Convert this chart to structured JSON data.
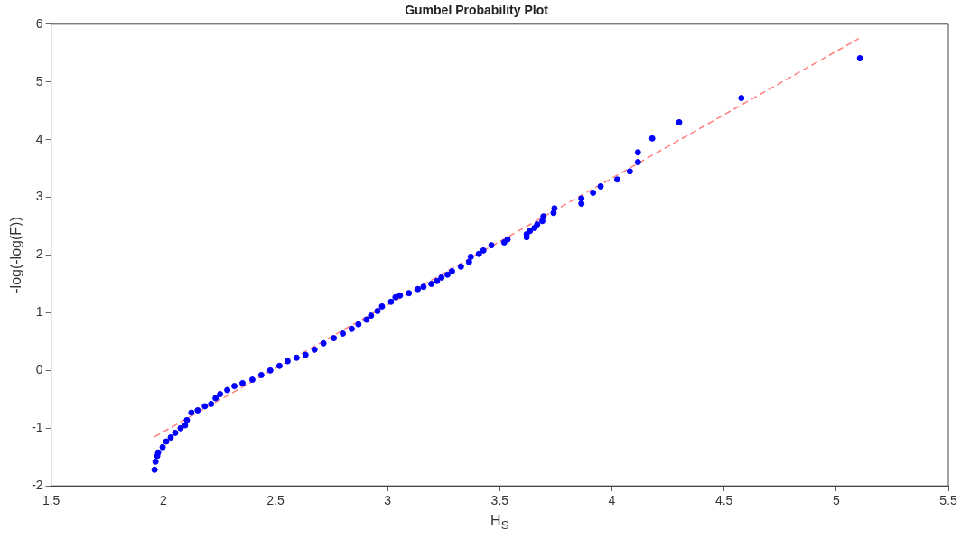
{
  "chart_data": {
    "type": "scatter",
    "title": "Gumbel Probability Plot",
    "xlabel": "H$_{S}$",
    "ylabel": "-log(-log(F))",
    "xlim": [
      1.5,
      5.5
    ],
    "xticks": [
      1.5,
      2,
      2.5,
      3,
      3.5,
      4,
      4.5,
      5,
      5.5
    ],
    "ylim": [
      -2,
      6
    ],
    "yticks": [
      -2,
      -1,
      0,
      1,
      2,
      3,
      4,
      5,
      6
    ],
    "grid": false,
    "legend": false,
    "series": [
      {
        "color": "#0000ff",
        "marker": "circle",
        "x": [
          1.961,
          1.965,
          1.973,
          1.977,
          1.997,
          2.013,
          2.033,
          2.053,
          2.077,
          2.097,
          2.105,
          2.125,
          2.153,
          2.185,
          2.213,
          2.233,
          2.253,
          2.285,
          2.317,
          2.353,
          2.397,
          2.437,
          2.477,
          2.518,
          2.554,
          2.594,
          2.634,
          2.674,
          2.714,
          2.76,
          2.8,
          2.84,
          2.87,
          2.906,
          2.926,
          2.955,
          2.975,
          3.015,
          3.035,
          3.055,
          3.095,
          3.135,
          3.16,
          3.195,
          3.22,
          3.24,
          3.267,
          3.287,
          3.327,
          3.363,
          3.371,
          3.407,
          3.427,
          3.463,
          3.52,
          3.535,
          3.62,
          3.62,
          3.635,
          3.655,
          3.667,
          3.69,
          3.695,
          3.74,
          3.744,
          3.864,
          3.864,
          3.916,
          3.95,
          4.024,
          4.08,
          4.116,
          4.116,
          4.18,
          4.3,
          4.577,
          5.106
        ],
        "values": [
          -1.72,
          -1.58,
          -1.48,
          -1.42,
          -1.33,
          -1.23,
          -1.16,
          -1.08,
          -1.0,
          -0.95,
          -0.86,
          -0.73,
          -0.69,
          -0.62,
          -0.58,
          -0.48,
          -0.41,
          -0.34,
          -0.27,
          -0.22,
          -0.16,
          -0.08,
          0.0,
          0.08,
          0.16,
          0.22,
          0.27,
          0.36,
          0.47,
          0.56,
          0.64,
          0.72,
          0.8,
          0.88,
          0.95,
          1.03,
          1.11,
          1.19,
          1.27,
          1.3,
          1.34,
          1.41,
          1.45,
          1.5,
          1.55,
          1.61,
          1.66,
          1.72,
          1.8,
          1.88,
          1.97,
          2.02,
          2.08,
          2.17,
          2.22,
          2.27,
          2.31,
          2.36,
          2.42,
          2.47,
          2.53,
          2.59,
          2.67,
          2.73,
          2.81,
          2.89,
          2.98,
          3.08,
          3.19,
          3.31,
          3.45,
          3.61,
          3.78,
          4.02,
          4.3,
          4.72,
          5.41
        ]
      },
      {
        "type": "line",
        "color": "#ff7f7f",
        "marker": "none",
        "line_style": "dashed",
        "x": [
          1.96,
          5.1
        ],
        "values": [
          -1.15,
          5.75
        ]
      }
    ]
  }
}
